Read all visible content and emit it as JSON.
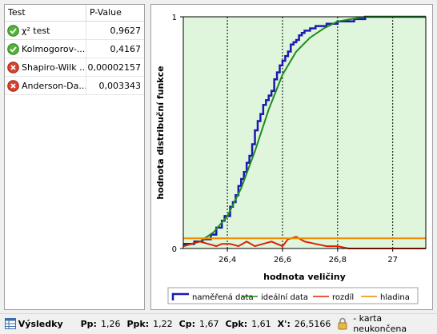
{
  "table": {
    "headers": {
      "test": "Test",
      "pvalue": "P-Value"
    },
    "rows": [
      {
        "name": "χ² test",
        "value": "0,9627",
        "status": "pass-icon"
      },
      {
        "name": "Kolmogorov-...",
        "value": "0,4167",
        "status": "pass-icon"
      },
      {
        "name": "Shapiro-Wilk ...",
        "value": "0,00002157",
        "status": "fail-icon"
      },
      {
        "name": "Anderson-Da...",
        "value": "0,003343",
        "status": "fail-icon"
      }
    ]
  },
  "statusbar": {
    "title": "Výsledky",
    "pp_label": "Pp:",
    "pp": "1,26",
    "ppk_label": "Ppk:",
    "ppk": "1,22",
    "cp_label": "Cp:",
    "cp": "1,67",
    "cpk_label": "Cpk:",
    "cpk": "1,61",
    "xbar_label": "X':",
    "xbar": "26,5166",
    "lock_icon": "lock-icon",
    "note": "- karta neukončena"
  },
  "colors": {
    "measured": "#1a1ab0",
    "ideal": "#1f8c1f",
    "difference": "#e02000",
    "level": "#f08a00",
    "plot_bg": "#dff5dc"
  },
  "chart_data": {
    "type": "line",
    "xlabel": "hodnota veličiny",
    "ylabel": "hodnota distribuční funkce",
    "xlim": [
      26.24,
      27.12
    ],
    "ylim": [
      0,
      1
    ],
    "xticks": [
      26.4,
      26.6,
      26.8,
      27
    ],
    "xtick_labels": [
      "26,4",
      "26,6",
      "26,8",
      "27"
    ],
    "yticks": [
      0,
      1
    ],
    "ytick_labels": [
      "0",
      "1"
    ],
    "grid": "vertical dashed",
    "legend_position": "bottom",
    "series": [
      {
        "name": "naměřená data",
        "style": "step",
        "x": [
          26.24,
          26.28,
          26.31,
          26.34,
          26.36,
          26.38,
          26.39,
          26.41,
          26.42,
          26.43,
          26.44,
          26.45,
          26.46,
          26.47,
          26.48,
          26.49,
          26.5,
          26.51,
          26.52,
          26.53,
          26.54,
          26.55,
          26.56,
          26.57,
          26.58,
          26.59,
          26.6,
          26.61,
          26.62,
          26.63,
          26.64,
          26.65,
          26.66,
          26.67,
          26.68,
          26.7,
          26.72,
          26.74,
          26.76,
          26.78,
          26.8,
          26.83,
          26.86,
          26.9,
          27.12
        ],
        "y": [
          0.02,
          0.03,
          0.04,
          0.06,
          0.09,
          0.12,
          0.14,
          0.18,
          0.2,
          0.23,
          0.27,
          0.3,
          0.33,
          0.37,
          0.4,
          0.45,
          0.51,
          0.55,
          0.58,
          0.62,
          0.64,
          0.66,
          0.68,
          0.73,
          0.76,
          0.79,
          0.81,
          0.83,
          0.85,
          0.88,
          0.89,
          0.9,
          0.92,
          0.93,
          0.94,
          0.95,
          0.96,
          0.96,
          0.97,
          0.97,
          0.98,
          0.98,
          0.99,
          1.0,
          1.0
        ]
      },
      {
        "name": "ideální data",
        "style": "line",
        "x": [
          26.24,
          26.3,
          26.35,
          26.4,
          26.45,
          26.5,
          26.55,
          26.6,
          26.65,
          26.7,
          26.75,
          26.8,
          26.85,
          26.9,
          27.0,
          27.12
        ],
        "y": [
          0.01,
          0.03,
          0.07,
          0.14,
          0.26,
          0.42,
          0.6,
          0.75,
          0.85,
          0.91,
          0.95,
          0.98,
          0.99,
          1.0,
          1.0,
          1.0
        ]
      },
      {
        "name": "rozdíl",
        "style": "line",
        "x": [
          26.24,
          26.27,
          26.3,
          26.33,
          26.36,
          26.38,
          26.41,
          26.44,
          26.47,
          26.5,
          26.53,
          26.56,
          26.6,
          26.62,
          26.65,
          26.68,
          26.72,
          26.76,
          26.8,
          26.84,
          26.88,
          26.95,
          27.12
        ],
        "y": [
          0.01,
          0.02,
          0.03,
          0.02,
          0.01,
          0.02,
          0.02,
          0.01,
          0.03,
          0.01,
          0.02,
          0.03,
          0.01,
          0.04,
          0.05,
          0.03,
          0.02,
          0.01,
          0.01,
          0.0,
          0.0,
          0.0,
          0.0
        ]
      },
      {
        "name": "hladina",
        "style": "line",
        "x": [
          26.24,
          27.12
        ],
        "y": [
          0.044,
          0.044
        ]
      }
    ]
  }
}
